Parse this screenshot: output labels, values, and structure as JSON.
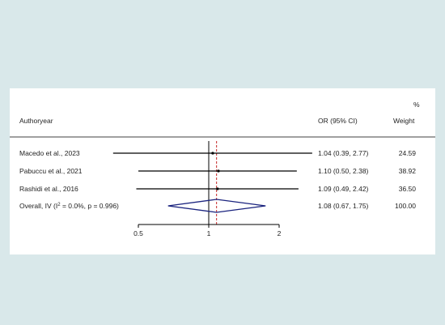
{
  "chart_data": {
    "type": "forest",
    "columns": {
      "study": "Authoryear",
      "effect": "OR (95% CI)",
      "weight_pct_symbol": "%",
      "weight": "Weight"
    },
    "studies": [
      {
        "label": "Macedo et al., 2023",
        "or": 1.04,
        "lower": 0.39,
        "upper": 2.77,
        "ci_text": "1.04 (0.39, 2.77)",
        "weight": "24.59"
      },
      {
        "label": "Pabuccu et al., 2021",
        "or": 1.1,
        "lower": 0.5,
        "upper": 2.38,
        "ci_text": "1.10 (0.50, 2.38)",
        "weight": "38.92"
      },
      {
        "label": "Rashidi  et  al., 2016",
        "or": 1.09,
        "lower": 0.49,
        "upper": 2.42,
        "ci_text": "1.09 (0.49, 2.42)",
        "weight": "36.50"
      }
    ],
    "overall": {
      "label_prefix": "Overall, IV (I",
      "label_sup": "2",
      "label_suffix": " = 0.0%, p = 0.996)",
      "or": 1.08,
      "lower": 0.67,
      "upper": 1.75,
      "ci_text": "1.08 (0.67, 1.75)",
      "weight": "100.00"
    },
    "x_scale": "log",
    "x_ticks": [
      {
        "value": 0.5,
        "label": "0.5"
      },
      {
        "value": 1,
        "label": "1"
      },
      {
        "value": 2,
        "label": "2"
      }
    ],
    "null_value": 1,
    "colors": {
      "background": "#d9e8ea",
      "panel": "#ffffff",
      "line": "#000000",
      "diamond": "#1a237e",
      "overall_line": "#c62828"
    }
  }
}
